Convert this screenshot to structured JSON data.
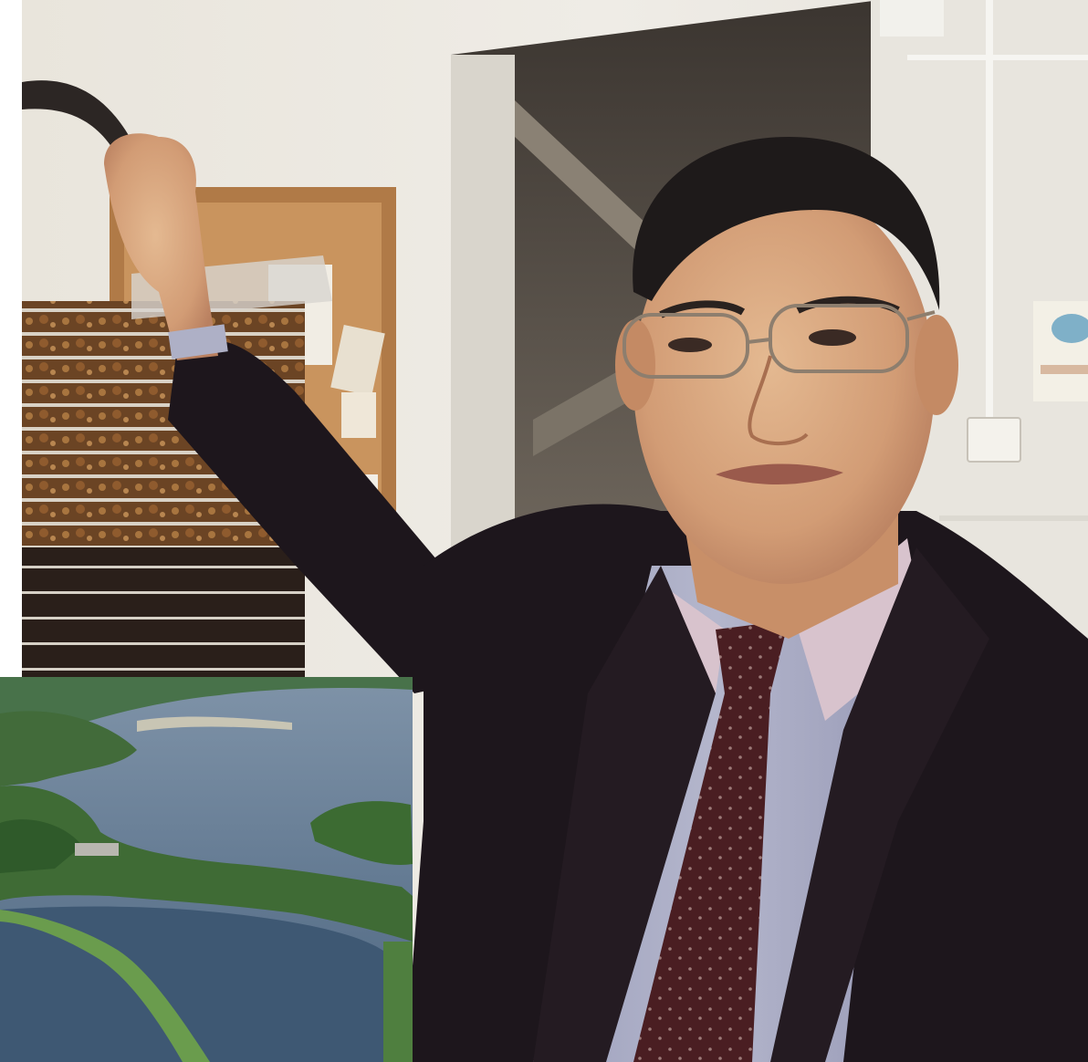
{
  "scene": {
    "main_photo": "portrait-photo",
    "inset_photo": "wetland-aerial-photo"
  },
  "colors": {
    "wall": "#ece9e2",
    "suit": "#1d161c",
    "shirt": "#a9acc4",
    "collar": "#d8c3cd",
    "tie": "#4a1e22",
    "skin": "#d7a983",
    "corkboard": "#c08a55",
    "water": "#5e7691",
    "vegetation": "#3f6b35"
  }
}
